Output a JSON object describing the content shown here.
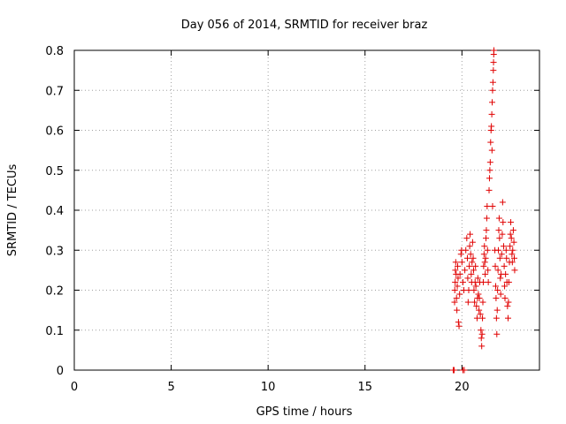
{
  "chart_data": {
    "type": "scatter",
    "title": "Day 056 of 2014, SRMTID for receiver braz",
    "xlabel": "GPS time / hours",
    "ylabel": "SRMTID / TECUs",
    "xlim": [
      0,
      24
    ],
    "ylim": [
      0,
      0.8
    ],
    "xticks": [
      "0",
      "5",
      "10",
      "15",
      "20"
    ],
    "xtick_values": [
      0,
      5,
      10,
      15,
      20
    ],
    "yticks": [
      "0",
      "0.1",
      "0.2",
      "0.3",
      "0.4",
      "0.5",
      "0.6",
      "0.7",
      "0.8"
    ],
    "ytick_values": [
      0,
      0.1,
      0.2,
      0.3,
      0.4,
      0.5,
      0.6,
      0.7,
      0.8
    ],
    "grid": true,
    "marker": "+",
    "color": "#e00000",
    "series": [
      {
        "name": "braz",
        "points": [
          [
            19.55,
            0.0
          ],
          [
            19.6,
            0.0
          ],
          [
            20.05,
            0.0
          ],
          [
            20.12,
            0.0
          ],
          [
            19.62,
            0.17
          ],
          [
            19.63,
            0.2
          ],
          [
            19.65,
            0.22
          ],
          [
            19.66,
            0.25
          ],
          [
            19.68,
            0.27
          ],
          [
            19.7,
            0.24
          ],
          [
            19.72,
            0.18
          ],
          [
            19.74,
            0.15
          ],
          [
            19.76,
            0.21
          ],
          [
            19.78,
            0.26
          ],
          [
            19.8,
            0.23
          ],
          [
            19.82,
            0.12
          ],
          [
            19.85,
            0.11
          ],
          [
            19.88,
            0.19
          ],
          [
            19.9,
            0.24
          ],
          [
            19.95,
            0.29
          ],
          [
            19.98,
            0.3
          ],
          [
            20.0,
            0.27
          ],
          [
            20.05,
            0.22
          ],
          [
            20.1,
            0.2
          ],
          [
            20.15,
            0.25
          ],
          [
            20.2,
            0.3
          ],
          [
            20.25,
            0.33
          ],
          [
            20.28,
            0.28
          ],
          [
            20.3,
            0.23
          ],
          [
            20.32,
            0.17
          ],
          [
            20.35,
            0.2
          ],
          [
            20.38,
            0.26
          ],
          [
            20.4,
            0.31
          ],
          [
            20.42,
            0.34
          ],
          [
            20.45,
            0.29
          ],
          [
            20.48,
            0.24
          ],
          [
            20.5,
            0.22
          ],
          [
            20.52,
            0.27
          ],
          [
            20.55,
            0.32
          ],
          [
            20.58,
            0.28
          ],
          [
            20.6,
            0.25
          ],
          [
            20.62,
            0.2
          ],
          [
            20.65,
            0.17
          ],
          [
            20.68,
            0.22
          ],
          [
            20.7,
            0.26
          ],
          [
            20.72,
            0.21
          ],
          [
            20.75,
            0.16
          ],
          [
            20.78,
            0.13
          ],
          [
            20.8,
            0.18
          ],
          [
            20.82,
            0.23
          ],
          [
            20.85,
            0.19
          ],
          [
            20.88,
            0.15
          ],
          [
            20.9,
            0.18
          ],
          [
            20.92,
            0.22
          ],
          [
            20.95,
            0.14
          ],
          [
            20.98,
            0.1
          ],
          [
            21.0,
            0.08
          ],
          [
            21.02,
            0.06
          ],
          [
            21.04,
            0.09
          ],
          [
            21.06,
            0.13
          ],
          [
            21.08,
            0.17
          ],
          [
            21.1,
            0.22
          ],
          [
            21.12,
            0.26
          ],
          [
            21.14,
            0.29
          ],
          [
            21.16,
            0.31
          ],
          [
            21.18,
            0.27
          ],
          [
            21.2,
            0.24
          ],
          [
            21.22,
            0.28
          ],
          [
            21.24,
            0.33
          ],
          [
            21.26,
            0.35
          ],
          [
            21.28,
            0.38
          ],
          [
            21.3,
            0.41
          ],
          [
            21.32,
            0.3
          ],
          [
            21.34,
            0.25
          ],
          [
            21.36,
            0.22
          ],
          [
            21.4,
            0.45
          ],
          [
            21.42,
            0.48
          ],
          [
            21.44,
            0.5
          ],
          [
            21.46,
            0.52
          ],
          [
            21.48,
            0.57
          ],
          [
            21.5,
            0.6
          ],
          [
            21.52,
            0.61
          ],
          [
            21.54,
            0.64
          ],
          [
            21.56,
            0.67
          ],
          [
            21.58,
            0.7
          ],
          [
            21.6,
            0.72
          ],
          [
            21.62,
            0.75
          ],
          [
            21.63,
            0.77
          ],
          [
            21.64,
            0.79
          ],
          [
            21.65,
            0.8
          ],
          [
            21.55,
            0.55
          ],
          [
            21.58,
            0.41
          ],
          [
            21.7,
            0.3
          ],
          [
            21.72,
            0.26
          ],
          [
            21.74,
            0.21
          ],
          [
            21.76,
            0.18
          ],
          [
            21.78,
            0.13
          ],
          [
            21.8,
            0.09
          ],
          [
            21.82,
            0.15
          ],
          [
            21.84,
            0.2
          ],
          [
            21.86,
            0.25
          ],
          [
            21.88,
            0.3
          ],
          [
            21.9,
            0.35
          ],
          [
            21.92,
            0.38
          ],
          [
            21.94,
            0.33
          ],
          [
            21.96,
            0.28
          ],
          [
            21.98,
            0.23
          ],
          [
            22.0,
            0.19
          ],
          [
            22.02,
            0.24
          ],
          [
            22.05,
            0.29
          ],
          [
            22.08,
            0.34
          ],
          [
            22.1,
            0.42
          ],
          [
            22.12,
            0.37
          ],
          [
            22.15,
            0.31
          ],
          [
            22.18,
            0.26
          ],
          [
            22.2,
            0.21
          ],
          [
            22.22,
            0.18
          ],
          [
            22.25,
            0.24
          ],
          [
            22.28,
            0.3
          ],
          [
            22.3,
            0.28
          ],
          [
            22.32,
            0.22
          ],
          [
            22.35,
            0.16
          ],
          [
            22.38,
            0.13
          ],
          [
            22.4,
            0.17
          ],
          [
            22.42,
            0.22
          ],
          [
            22.45,
            0.27
          ],
          [
            22.48,
            0.31
          ],
          [
            22.5,
            0.34
          ],
          [
            22.52,
            0.37
          ],
          [
            22.55,
            0.33
          ],
          [
            22.58,
            0.29
          ],
          [
            22.6,
            0.27
          ],
          [
            22.62,
            0.3
          ],
          [
            22.65,
            0.35
          ],
          [
            22.68,
            0.32
          ],
          [
            22.7,
            0.28
          ],
          [
            22.72,
            0.25
          ]
        ]
      }
    ]
  }
}
